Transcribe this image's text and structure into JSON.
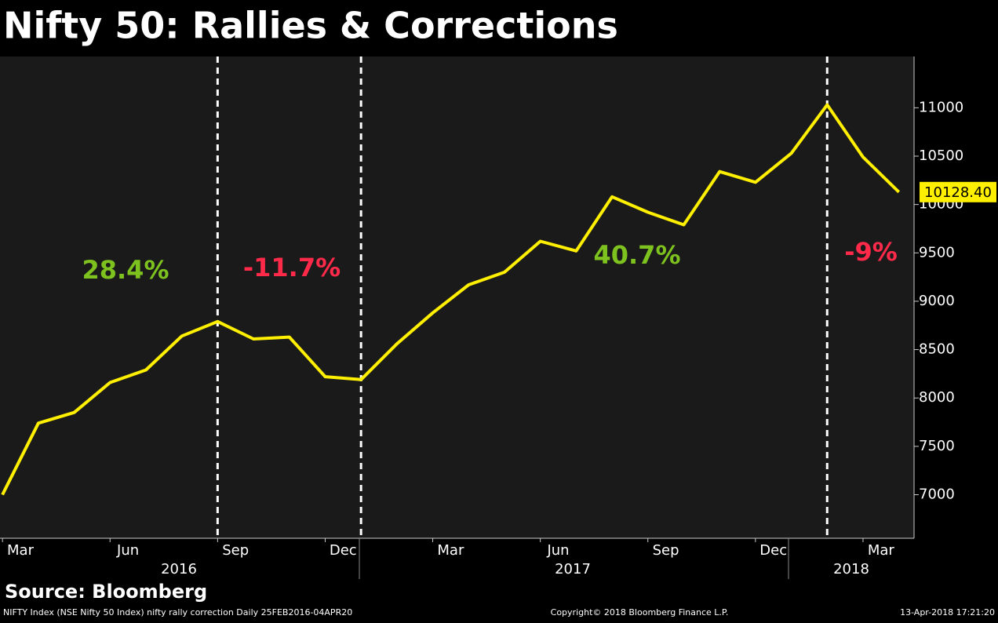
{
  "chart_data": {
    "type": "line",
    "title": "Nifty 50: Rallies & Corrections",
    "source": "Source: Bloomberg",
    "footer_left": "NIFTY Index (NSE Nifty 50 Index) nifty rally correction  Daily 25FEB2016-04APR20",
    "footer_center": "Copyright© 2018 Bloomberg Finance L.P.",
    "footer_right": "13-Apr-2018 17:21:20",
    "x": [
      "2016-02",
      "2016-03",
      "2016-04",
      "2016-05",
      "2016-06",
      "2016-07",
      "2016-08",
      "2016-09",
      "2016-10",
      "2016-11",
      "2016-12",
      "2017-01",
      "2017-02",
      "2017-03",
      "2017-04",
      "2017-05",
      "2017-06",
      "2017-07",
      "2017-08",
      "2017-09",
      "2017-10",
      "2017-11",
      "2017-12",
      "2018-01",
      "2018-02",
      "2018-03"
    ],
    "series": [
      {
        "name": "Nifty 50",
        "color": "#ffef00",
        "values": [
          7000,
          7740,
          7850,
          8160,
          8290,
          8640,
          8790,
          8610,
          8630,
          8220,
          8190,
          8560,
          8880,
          9170,
          9300,
          9620,
          9520,
          10080,
          9920,
          9790,
          10340,
          10230,
          10530,
          11030,
          10490,
          10128.4
        ]
      }
    ],
    "last_value": {
      "value": 10128.4,
      "label": "10128.40"
    },
    "ylim": [
      6550,
      11530
    ],
    "yticks": [
      7000,
      7500,
      8000,
      8500,
      9000,
      9500,
      10000,
      10500,
      11000
    ],
    "xticks": [
      {
        "value": "2016-03",
        "label": "Mar"
      },
      {
        "value": "2016-06",
        "label": "Jun"
      },
      {
        "value": "2016-09",
        "label": "Sep"
      },
      {
        "value": "2016-12",
        "label": "Dec"
      },
      {
        "value": "2017-03",
        "label": "Mar"
      },
      {
        "value": "2017-06",
        "label": "Jun"
      },
      {
        "value": "2017-09",
        "label": "Sep"
      },
      {
        "value": "2017-12",
        "label": "Dec"
      },
      {
        "value": "2018-03",
        "label": "Mar"
      }
    ],
    "years": [
      "2016",
      "2017",
      "2018"
    ],
    "markers": [
      "2016-08",
      "2016-12",
      "2018-01"
    ],
    "annotations": [
      {
        "text": "28.4%",
        "color": "#7dc21e"
      },
      {
        "text": "-11.7%",
        "color": "#ff2a4a"
      },
      {
        "text": "40.7%",
        "color": "#7dc21e"
      },
      {
        "text": "-9%",
        "color": "#ff2a4a"
      }
    ]
  }
}
